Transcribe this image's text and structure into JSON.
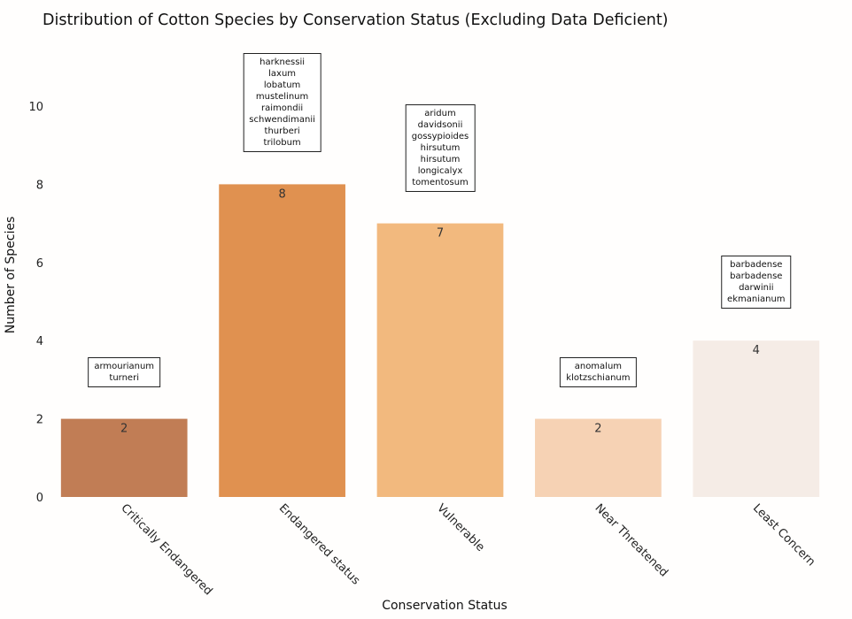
{
  "colors": {
    "bars": [
      "#c17d55",
      "#e09150",
      "#f2b97e",
      "#f6d2b4",
      "#f5ece6"
    ]
  },
  "chart_data": {
    "type": "bar",
    "title": "Distribution of Cotton Species by Conservation Status (Excluding Data Deficient)",
    "xlabel": "Conservation Status",
    "ylabel": "Number of Species",
    "categories": [
      "Critically Endangered",
      "Endangered status",
      "Vulnerable",
      "Near Threatened",
      "Least Concern"
    ],
    "values": [
      2,
      8,
      7,
      2,
      4
    ],
    "ylim": [
      0,
      11.5
    ],
    "yticks": [
      0,
      2,
      4,
      6,
      8,
      10
    ],
    "grid": false,
    "annotations": [
      [
        "armourianum",
        "turneri"
      ],
      [
        "harknessii",
        "laxum",
        "lobatum",
        "mustelinum",
        "raimondii",
        "schwendimanii",
        "thurberi",
        "trilobum"
      ],
      [
        "aridum",
        "davidsonii",
        "gossypioides",
        "hirsutum",
        "hirsutum",
        "longicalyx",
        "tomentosum"
      ],
      [
        "anomalum",
        "klotzschianum"
      ],
      [
        "barbadense",
        "barbadense",
        "darwinii",
        "ekmanianum"
      ]
    ]
  }
}
